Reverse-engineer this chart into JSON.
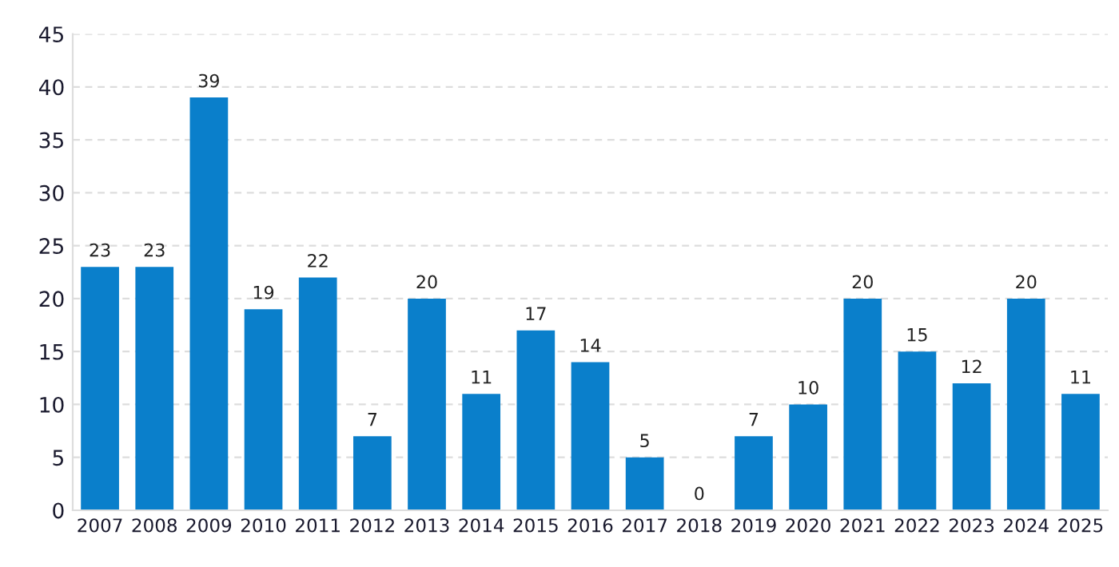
{
  "chart_data": {
    "type": "bar",
    "categories": [
      "2007",
      "2008",
      "2009",
      "2010",
      "2011",
      "2012",
      "2013",
      "2014",
      "2015",
      "2016",
      "2017",
      "2018",
      "2019",
      "2020",
      "2021",
      "2022",
      "2023",
      "2024",
      "2025"
    ],
    "values": [
      23,
      23,
      39,
      19,
      22,
      7,
      20,
      11,
      17,
      14,
      5,
      0,
      7,
      10,
      20,
      15,
      12,
      20,
      11
    ],
    "color": "#0a7fcb",
    "ylim": [
      0,
      45
    ],
    "yticks": [
      0,
      5,
      10,
      15,
      20,
      25,
      30,
      35,
      40,
      45
    ],
    "grid": "y",
    "data_labels": true
  }
}
